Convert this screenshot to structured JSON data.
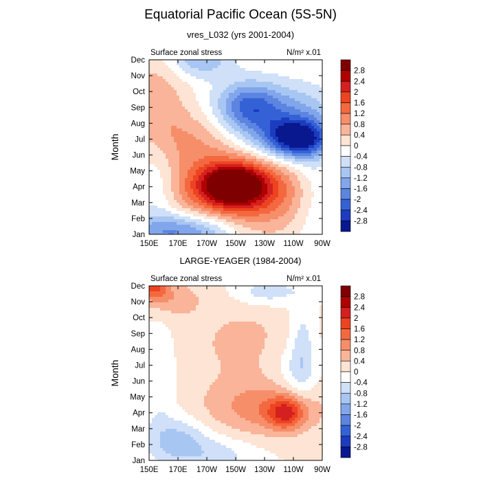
{
  "page": {
    "title": "Equatorial Pacific Ocean (5S-5N)"
  },
  "chart_data": [
    {
      "type": "heatmap",
      "title": "vres_L032 (yrs 2001-2004)",
      "left_string": "Surface zonal stress",
      "right_string": "N/m² x.01",
      "xlabel": "",
      "ylabel": "Month",
      "x_ticks": [
        "150E",
        "170E",
        "170W",
        "150W",
        "130W",
        "110W",
        "90W"
      ],
      "x_values_deg_east": [
        150,
        170,
        190,
        210,
        230,
        250,
        270
      ],
      "y_ticks": [
        "Jan",
        "Feb",
        "Mar",
        "Apr",
        "May",
        "Jun",
        "Jul",
        "Aug",
        "Sep",
        "Oct",
        "Nov",
        "Dec"
      ],
      "colorbar_levels": [
        2.8,
        2.4,
        2,
        1.6,
        1.2,
        0.8,
        0.4,
        0,
        -0.4,
        -0.8,
        -1.2,
        -1.6,
        -2,
        -2.4,
        -2.8
      ],
      "features": [
        {
          "kind": "max",
          "lon": 208,
          "month": 4.1,
          "value": 3.0,
          "sx": 16,
          "sy": 0.9
        },
        {
          "kind": "pos",
          "lon": 215,
          "month": 3.7,
          "value": 1.7,
          "sx": 34,
          "sy": 1.7
        },
        {
          "kind": "pos",
          "lon": 186,
          "month": 7.1,
          "value": 0.9,
          "sx": 24,
          "sy": 1.4
        },
        {
          "kind": "pos",
          "lon": 156,
          "month": 9.3,
          "value": 0.7,
          "sx": 14,
          "sy": 2.2
        },
        {
          "kind": "neg",
          "lon": 236,
          "month": 8.1,
          "value": -1.8,
          "sx": 30,
          "sy": 1.6
        },
        {
          "kind": "min",
          "lon": 253,
          "month": 7.0,
          "value": -2.6,
          "sx": 14,
          "sy": 0.8
        },
        {
          "kind": "neg",
          "lon": 218,
          "month": 9.2,
          "value": -1.2,
          "sx": 14,
          "sy": 1.0
        },
        {
          "kind": "neg",
          "lon": 185,
          "month": 12.0,
          "value": -1.1,
          "sx": 16,
          "sy": 0.8
        },
        {
          "kind": "neg",
          "lon": 166,
          "month": 1.2,
          "value": -1.4,
          "sx": 20,
          "sy": 0.8
        },
        {
          "kind": "neg",
          "lon": 193,
          "month": 1.1,
          "value": -0.8,
          "sx": 18,
          "sy": 0.9
        },
        {
          "kind": "neg",
          "lon": 155,
          "month": 4.0,
          "value": -0.6,
          "sx": 10,
          "sy": 2.5
        },
        {
          "kind": "neg",
          "lon": 264,
          "month": 3.5,
          "value": -0.6,
          "sx": 10,
          "sy": 2.5
        }
      ]
    },
    {
      "type": "heatmap",
      "title": "LARGE-YEAGER (1984-2004)",
      "left_string": "Surface zonal stress",
      "right_string": "N/m² x.01",
      "xlabel": "",
      "ylabel": "Month",
      "x_ticks": [
        "150E",
        "170E",
        "170W",
        "150W",
        "130W",
        "110W",
        "90W"
      ],
      "x_values_deg_east": [
        150,
        170,
        190,
        210,
        230,
        250,
        270
      ],
      "y_ticks": [
        "Jan",
        "Feb",
        "Mar",
        "Apr",
        "May",
        "Jun",
        "Jul",
        "Aug",
        "Sep",
        "Oct",
        "Nov",
        "Dec"
      ],
      "colorbar_levels": [
        2.8,
        2.4,
        2,
        1.6,
        1.2,
        0.8,
        0.4,
        0,
        -0.4,
        -0.8,
        -1.2,
        -1.6,
        -2,
        -2.4,
        -2.8
      ],
      "features": [
        {
          "kind": "pos",
          "lon": 230,
          "month": 4.3,
          "value": 1.0,
          "sx": 30,
          "sy": 1.3
        },
        {
          "kind": "max",
          "lon": 245,
          "month": 4.0,
          "value": 1.6,
          "sx": 9,
          "sy": 0.7
        },
        {
          "kind": "pos",
          "lon": 153,
          "month": 12.0,
          "value": 1.5,
          "sx": 7,
          "sy": 0.6
        },
        {
          "kind": "pos",
          "lon": 165,
          "month": 11.2,
          "value": 0.7,
          "sx": 14,
          "sy": 0.8
        },
        {
          "kind": "pos",
          "lon": 215,
          "month": 8.5,
          "value": 0.5,
          "sx": 30,
          "sy": 2.0
        },
        {
          "kind": "neg",
          "lon": 170,
          "month": 2.3,
          "value": -0.9,
          "sx": 14,
          "sy": 1.0
        },
        {
          "kind": "neg",
          "lon": 196,
          "month": 1.3,
          "value": -0.6,
          "sx": 20,
          "sy": 0.9
        },
        {
          "kind": "neg",
          "lon": 232,
          "month": 11.6,
          "value": -0.7,
          "sx": 16,
          "sy": 0.6
        },
        {
          "kind": "neg",
          "lon": 256,
          "month": 8.0,
          "value": -0.7,
          "sx": 6,
          "sy": 2.2
        },
        {
          "kind": "neg",
          "lon": 157,
          "month": 6.0,
          "value": -0.4,
          "sx": 8,
          "sy": 3.0
        },
        {
          "kind": "neg",
          "lon": 250,
          "month": 6.5,
          "value": -0.5,
          "sx": 12,
          "sy": 1.3
        }
      ]
    }
  ]
}
